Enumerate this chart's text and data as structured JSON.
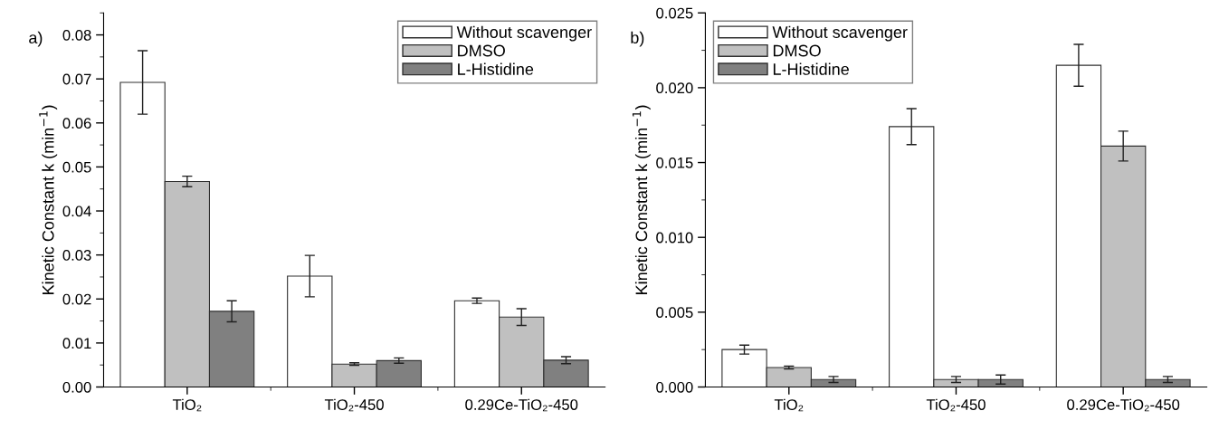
{
  "chart_data": [
    {
      "type": "bar",
      "title": "a)",
      "ylabel": "Kinetic Constant k (min$^{−1}$)",
      "categories": [
        "TiO₂",
        "TiO₂-450",
        "0.29Ce-TiO₂-450"
      ],
      "series": [
        {
          "name": "Without scavenger",
          "color": "#ffffff",
          "values": [
            0.0692,
            0.0252,
            0.0196
          ],
          "errors": [
            0.0072,
            0.0047,
            0.0006
          ]
        },
        {
          "name": "DMSO",
          "color": "#c0c0c0",
          "values": [
            0.0467,
            0.0052,
            0.0159
          ],
          "errors": [
            0.0012,
            0.0003,
            0.0019
          ]
        },
        {
          "name": "L-Histidine",
          "color": "#808080",
          "values": [
            0.0172,
            0.006,
            0.0061
          ],
          "errors": [
            0.0024,
            0.0006,
            0.0008
          ]
        }
      ],
      "ylim": [
        0,
        0.085
      ],
      "yticks": [
        {
          "value": 0,
          "label": "0.00"
        },
        0.01,
        0.02,
        0.03,
        0.04,
        0.05,
        0.06,
        0.07,
        0.08
      ],
      "legend": "top right",
      "grid": false
    },
    {
      "type": "bar",
      "title": "b)",
      "ylabel": "Kinetic Constant k (min$^{−1}$)",
      "categories": [
        "TiO₂",
        "TiO₂-450",
        "0.29Ce-TiO₂-450"
      ],
      "series": [
        {
          "name": "Without scavenger",
          "color": "#ffffff",
          "values": [
            0.0025,
            0.0174,
            0.0215
          ],
          "errors": [
            0.0003,
            0.0012,
            0.0014
          ]
        },
        {
          "name": "DMSO",
          "color": "#c0c0c0",
          "values": [
            0.0013,
            0.0005,
            0.0161
          ],
          "errors": [
            0.0001,
            0.0002,
            0.001
          ]
        },
        {
          "name": "L-Histidine",
          "color": "#808080",
          "values": [
            0.0005,
            0.0005,
            0.0005
          ],
          "errors": [
            0.0002,
            0.0003,
            0.0002
          ]
        }
      ],
      "ylim": [
        0,
        0.025
      ],
      "yticks": [
        {
          "value": 0,
          "label": "0.000"
        },
        {
          "value": 0.005,
          "label": "0.005"
        },
        {
          "value": 0.01,
          "label": "0.010"
        },
        {
          "value": 0.015,
          "label": "0.015"
        },
        {
          "value": 0.02,
          "label": "0.020"
        },
        {
          "value": 0.025,
          "label": "0.025"
        }
      ],
      "legend": "top left",
      "grid": false
    }
  ]
}
